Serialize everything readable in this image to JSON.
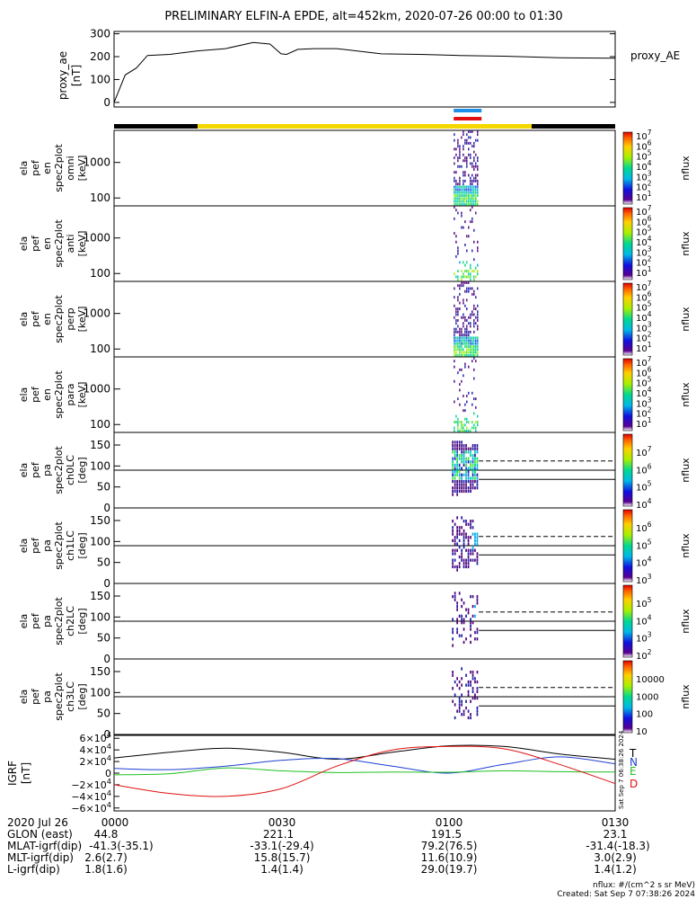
{
  "chart_data": {
    "type": "heatmap",
    "title": "PRELIMINARY ELFIN-A EPDE, alt=452km, 2020-07-26 00:00 to 01:30",
    "proxy_ae": {
      "ylabel": [
        "proxy_ae",
        "[nT]"
      ],
      "legend": "proxy_AE",
      "ticks": [
        "300",
        "200",
        "100",
        "0"
      ],
      "ylim": [
        -20,
        310
      ],
      "x_min": [
        0,
        2,
        4,
        6,
        10,
        15,
        20,
        25,
        28,
        30,
        31,
        33,
        36,
        40,
        48,
        55,
        62,
        70,
        80,
        90
      ],
      "values": [
        0,
        120,
        150,
        205,
        210,
        225,
        235,
        262,
        255,
        212,
        210,
        232,
        235,
        235,
        212,
        210,
        205,
        202,
        195,
        193
      ]
    },
    "flag_bar": {
      "black_1": [
        0,
        15
      ],
      "yellow": [
        15,
        75
      ],
      "black_2": [
        75,
        90
      ]
    },
    "science_marks": {
      "blue": [
        61,
        66
      ],
      "red": [
        61,
        66
      ]
    },
    "energy_panels": [
      {
        "label": [
          "ela",
          "pef",
          "en",
          "spec2plot",
          "omni",
          "[keV]"
        ],
        "ticks": [
          "1000",
          "100"
        ],
        "cb_ticks": [
          "10^7",
          "10^6",
          "10^5",
          "10^4",
          "10^3",
          "10^2",
          "10^1"
        ],
        "cb_label": "nflux",
        "density": "full"
      },
      {
        "label": [
          "ela",
          "pef",
          "en",
          "spec2plot",
          "anti",
          "[keV]"
        ],
        "ticks": [
          "1000",
          "100"
        ],
        "cb_ticks": [
          "10^7",
          "10^6",
          "10^5",
          "10^4",
          "10^3",
          "10^2",
          "10^1"
        ],
        "cb_label": "nflux",
        "density": "sparse"
      },
      {
        "label": [
          "ela",
          "pef",
          "en",
          "spec2plot",
          "perp",
          "[keV]"
        ],
        "ticks": [
          "1000",
          "100"
        ],
        "cb_ticks": [
          "10^7",
          "10^6",
          "10^5",
          "10^4",
          "10^3",
          "10^2",
          "10^1"
        ],
        "cb_label": "nflux",
        "density": "full"
      },
      {
        "label": [
          "ela",
          "pef",
          "en",
          "spec2plot",
          "para",
          "[keV]"
        ],
        "ticks": [
          "1000",
          "100"
        ],
        "cb_ticks": [
          "10^7",
          "10^6",
          "10^5",
          "10^4",
          "10^3",
          "10^2",
          "10^1"
        ],
        "cb_label": "nflux",
        "density": "sparse"
      }
    ],
    "pa_panels": [
      {
        "label": [
          "ela",
          "pef",
          "pa",
          "spec2plot",
          "ch0LC",
          "[deg]"
        ],
        "ticks": [
          "150",
          "100",
          "50",
          "0"
        ],
        "cb_ticks": [
          "10^7",
          "10^6",
          "10^5",
          "10^4"
        ],
        "cb_label": "nflux"
      },
      {
        "label": [
          "ela",
          "pef",
          "pa",
          "spec2plot",
          "ch1LC",
          "[deg]"
        ],
        "ticks": [
          "150",
          "100",
          "50",
          "0"
        ],
        "cb_ticks": [
          "10^6",
          "10^5",
          "10^4",
          "10^3"
        ],
        "cb_label": "nflux"
      },
      {
        "label": [
          "ela",
          "pef",
          "pa",
          "spec2plot",
          "ch2LC",
          "[deg]"
        ],
        "ticks": [
          "150",
          "100",
          "50",
          "0"
        ],
        "cb_ticks": [
          "10^5",
          "10^4",
          "10^3",
          "10^2"
        ],
        "cb_label": "nflux"
      },
      {
        "label": [
          "ela",
          "pef",
          "pa",
          "spec2plot",
          "ch3LC",
          "[deg]"
        ],
        "ticks": [
          "150",
          "100",
          "50",
          "0"
        ],
        "cb_ticks": [
          "10000",
          "1000",
          "100",
          "10"
        ],
        "cb_label": "nflux"
      }
    ],
    "igrf": {
      "ylabel": [
        "IGRF",
        "[nT]"
      ],
      "ticks": [
        "6×10^4",
        "4×10^4",
        "2×10^4",
        "0",
        "−2×10^4",
        "−4×10^4",
        "−6×10^4"
      ],
      "ylim": [
        -65000,
        65000
      ],
      "legend": [
        {
          "name": "T",
          "color": "#000000"
        },
        {
          "name": "N",
          "color": "#1f3fd0"
        },
        {
          "name": "E",
          "color": "#22c022"
        },
        {
          "name": "D",
          "color": "#e01010"
        }
      ],
      "x_min": [
        0,
        10,
        20,
        30,
        40,
        50,
        60,
        70,
        80,
        90
      ],
      "series": [
        {
          "name": "T",
          "color": "#000000",
          "values": [
            26000,
            36000,
            43000,
            36000,
            24000,
            36000,
            47000,
            46000,
            33000,
            24000
          ]
        },
        {
          "name": "N",
          "color": "#1f3fd0",
          "values": [
            8000,
            6000,
            12000,
            22000,
            25000,
            12000,
            0,
            15000,
            28000,
            16000
          ]
        },
        {
          "name": "E",
          "color": "#22c022",
          "values": [
            -3000,
            -1000,
            9000,
            4000,
            1000,
            2000,
            1500,
            4000,
            2500,
            2000
          ]
        },
        {
          "name": "D",
          "color": "#e01010",
          "values": [
            -20000,
            -35000,
            -40000,
            -27000,
            12000,
            40000,
            46000,
            42000,
            15000,
            -18000
          ]
        }
      ],
      "timestamp_side": "Sat Sep  7 06:38:26 2024"
    },
    "ephemeris": {
      "date": "2020 Jul 26",
      "rows": [
        {
          "label": "GLON (east)",
          "values": [
            "44.8",
            "221.1",
            "191.5",
            "23.1"
          ]
        },
        {
          "label": "MLAT-igrf(dip)",
          "values": [
            "-41.3(-35.1)",
            "-33.1(-29.4)",
            "79.2(76.5)",
            "-31.4(-18.3)"
          ]
        },
        {
          "label": "MLT-igrf(dip)",
          "values": [
            "2.6(2.7)",
            "15.8(15.7)",
            "11.6(10.9)",
            "3.0(2.9)"
          ]
        },
        {
          "label": "L-igrf(dip)",
          "values": [
            "1.8(1.6)",
            "1.4(1.4)",
            "29.0(19.7)",
            "1.4(1.2)"
          ]
        }
      ],
      "time_ticks": [
        "0000",
        "0030",
        "0100",
        "0130"
      ]
    },
    "footer": {
      "units": "nflux: #/(cm^2 s sr MeV)",
      "created": "Created: Sat Sep  7 07:38:26 2024"
    }
  }
}
